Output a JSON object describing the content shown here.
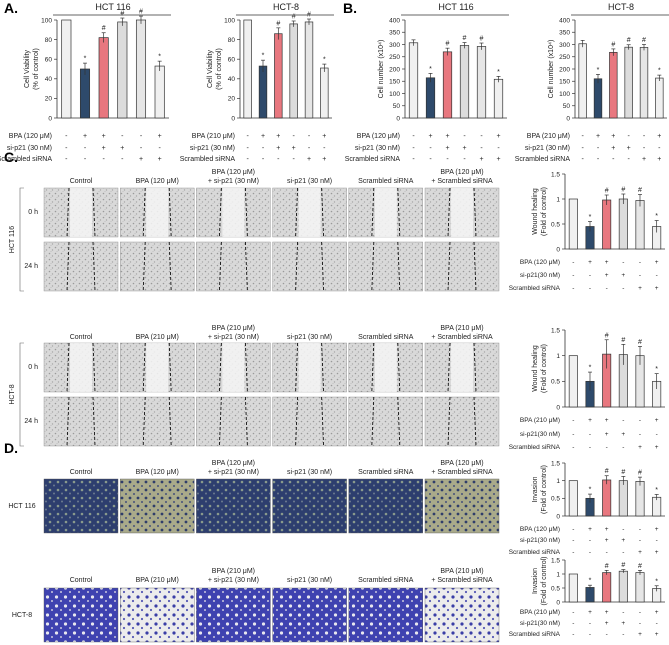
{
  "colors": {
    "control": "#f0f0f0",
    "bpa": "#2e4a6b",
    "bpa_sip21": "#e8777f",
    "sip21": "#dcdcdc",
    "scr": "#e6e6e6",
    "bpa_scr": "#f0f0f0"
  },
  "micro_colors": {
    "wound": "#dedede",
    "invasion_hct116": "#2f3f72",
    "invasion_hct8": "#3a40a8"
  },
  "row_labels": {
    "label_120": "BPA (120 μM)",
    "label_210": "BPA (210 μM)",
    "sip21": "si-p21 (30 nM)",
    "sip21_short": "si-p21(30 nM)",
    "scr": "Scrambled siRNA"
  },
  "signs": {
    "bpa": [
      "-",
      "+",
      "+",
      "-",
      "-",
      "+"
    ],
    "sip21": [
      "-",
      "-",
      "+",
      "+",
      "-",
      "-"
    ],
    "scr": [
      "-",
      "-",
      "-",
      "-",
      "+",
      "+"
    ]
  },
  "micro_labels": {
    "hct116": [
      "Control",
      "BPA (120 μM)",
      "BPA (120 μM)|+ si-p21 (30 nM)",
      "si-p21 (30 nM)",
      "Scrambled siRNA",
      "BPA (120 μM)|+ Scrambled siRNA"
    ],
    "hct8": [
      "Control",
      "BPA (210 μM)",
      "BPA (210 μM)|+ si-p21 (30 nM)",
      "si-p21 (30 nM)",
      "Scrambled siRNA",
      "BPA (210 μM)|+ Scrambled siRNA"
    ]
  },
  "time_labels": [
    "0 h",
    "24 h"
  ],
  "cell_lines": {
    "hct116": "HCT 116",
    "hct8": "HCT-8"
  },
  "panels": [
    {
      "letter": "A.",
      "label_x": 4,
      "label_y": 13
    },
    {
      "letter": "B.",
      "label_x": 343,
      "label_y": 13
    },
    {
      "letter": "C.",
      "label_x": 4,
      "label_y": 162
    },
    {
      "letter": "D.",
      "label_x": 4,
      "label_y": 453
    }
  ],
  "chart_data": [
    {
      "id": "A-hct116",
      "type": "bar",
      "title": "HCT 116",
      "ylabel": "Cell Viability|(% of control)",
      "yticks": [
        0,
        20,
        40,
        60,
        80,
        100
      ],
      "ylim": [
        0,
        100
      ],
      "values": [
        100,
        50,
        82,
        98,
        100,
        53
      ],
      "errors": [
        0,
        6,
        5,
        4,
        4,
        5
      ],
      "marks": [
        "",
        "*",
        "#",
        "#",
        "#",
        "*"
      ],
      "bpa_label": "BPA (120 μM)"
    },
    {
      "id": "A-hct8",
      "type": "bar",
      "title": "HCT-8",
      "ylabel": "Cell Viability|(% of control)",
      "yticks": [
        0,
        20,
        40,
        60,
        80,
        100
      ],
      "ylim": [
        0,
        100
      ],
      "values": [
        100,
        53,
        86,
        96,
        98,
        51
      ],
      "errors": [
        0,
        6,
        6,
        3,
        3,
        4
      ],
      "marks": [
        "",
        "*",
        "#",
        "#",
        "#",
        "*"
      ],
      "bpa_label": "BPA (210 μM)"
    },
    {
      "id": "B-hct116",
      "type": "bar",
      "title": "HCT 116",
      "ylabel": "Cell number (x10⁴)",
      "yticks": [
        0,
        50,
        100,
        150,
        200,
        250,
        300,
        350,
        400
      ],
      "ylim": [
        0,
        400
      ],
      "values": [
        307,
        164,
        270,
        296,
        292,
        158
      ],
      "errors": [
        12,
        18,
        15,
        12,
        14,
        12
      ],
      "marks": [
        "",
        "*",
        "#",
        "#",
        "#",
        "*"
      ],
      "bpa_label": "BPA (120 μM)"
    },
    {
      "id": "B-hct8",
      "type": "bar",
      "title": "HCT-8",
      "ylabel": "Cell number (x10⁴)",
      "yticks": [
        0,
        50,
        100,
        150,
        200,
        250,
        300,
        350,
        400
      ],
      "ylim": [
        0,
        400
      ],
      "values": [
        303,
        160,
        268,
        289,
        288,
        163
      ],
      "errors": [
        14,
        18,
        14,
        10,
        12,
        12
      ],
      "marks": [
        "",
        "*",
        "#",
        "#",
        "#",
        "*"
      ],
      "bpa_label": "BPA (210 μM)"
    },
    {
      "id": "C-hct116",
      "type": "bar",
      "title": "",
      "ylabel": "Wound healing|(Fold of control)",
      "yticks": [
        0,
        0.5,
        1,
        1.5
      ],
      "ylim": [
        0,
        1.5
      ],
      "values": [
        1,
        0.45,
        0.98,
        1.0,
        0.97,
        0.45
      ],
      "errors": [
        0,
        0.1,
        0.1,
        0.1,
        0.12,
        0.12
      ],
      "marks": [
        "",
        "*",
        "#",
        "#",
        "#",
        "*"
      ],
      "bpa_label": "BPA (120 μM)"
    },
    {
      "id": "C-hct8",
      "type": "bar",
      "title": "",
      "ylabel": "Wound healing|(Fold of control)",
      "yticks": [
        0,
        0.5,
        1,
        1.5
      ],
      "ylim": [
        0,
        1.5
      ],
      "values": [
        1,
        0.5,
        1.03,
        1.02,
        1.0,
        0.5
      ],
      "errors": [
        0,
        0.18,
        0.28,
        0.2,
        0.18,
        0.15
      ],
      "marks": [
        "",
        "*",
        "#",
        "#",
        "#",
        "*"
      ],
      "bpa_label": "BPA (210 μM)"
    },
    {
      "id": "D-hct116",
      "type": "bar",
      "title": "",
      "ylabel": "Invasion|(Fold of control)",
      "yticks": [
        0,
        0.5,
        1,
        1.5
      ],
      "ylim": [
        0,
        1.5
      ],
      "values": [
        1,
        0.5,
        1.02,
        1.0,
        0.98,
        0.53
      ],
      "errors": [
        0,
        0.12,
        0.12,
        0.12,
        0.12,
        0.08
      ],
      "marks": [
        "",
        "*",
        "#",
        "#",
        "#",
        "*"
      ],
      "bpa_label": "BPA (120 μM)"
    },
    {
      "id": "D-hct8",
      "type": "bar",
      "title": "",
      "ylabel": "Invasion|(Fold of control)",
      "yticks": [
        0,
        0.5,
        1,
        1.5
      ],
      "ylim": [
        0,
        1.5
      ],
      "values": [
        1,
        0.52,
        1.05,
        1.1,
        1.05,
        0.48
      ],
      "errors": [
        0,
        0.08,
        0.08,
        0.06,
        0.08,
        0.1
      ],
      "marks": [
        "",
        "*",
        "#",
        "#",
        "#",
        "*"
      ],
      "bpa_label": "BPA (210 μM)"
    }
  ]
}
